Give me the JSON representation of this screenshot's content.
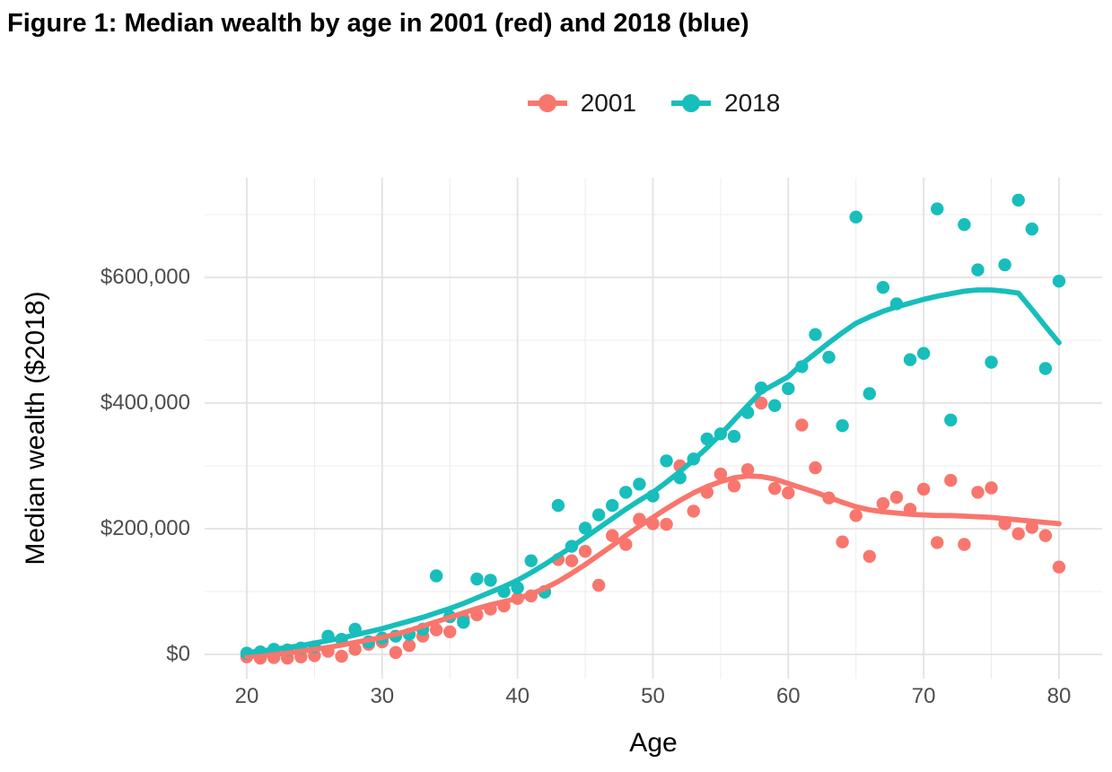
{
  "title": "Figure 1: Median wealth by age in 2001 (red) and 2018 (blue)",
  "legend": {
    "position": "top-center"
  },
  "chart_data": {
    "type": "scatter",
    "title": "Figure 1: Median wealth by age in 2001 (red) and 2018 (blue)",
    "xlabel": "Age",
    "ylabel": "Median wealth ($2018)",
    "x": [
      20,
      21,
      22,
      23,
      24,
      25,
      26,
      27,
      28,
      29,
      30,
      31,
      32,
      33,
      34,
      35,
      36,
      37,
      38,
      39,
      40,
      41,
      42,
      43,
      44,
      45,
      46,
      47,
      48,
      49,
      50,
      51,
      52,
      53,
      54,
      55,
      56,
      57,
      58,
      59,
      60,
      61,
      62,
      63,
      64,
      65,
      66,
      67,
      68,
      69,
      70,
      71,
      72,
      73,
      74,
      75,
      76,
      77,
      78,
      79,
      80
    ],
    "series": [
      {
        "name": "2001",
        "color": "#F8766D",
        "points": [
          -4000,
          -6000,
          -5000,
          -6000,
          -4000,
          -2000,
          5000,
          -3000,
          8000,
          16000,
          20000,
          3000,
          14000,
          29000,
          39000,
          36000,
          57000,
          63000,
          72000,
          77000,
          89000,
          93000,
          100000,
          151000,
          149000,
          164000,
          110000,
          189000,
          175000,
          215000,
          208000,
          207000,
          300000,
          228000,
          258000,
          287000,
          268000,
          294000,
          400000,
          264000,
          257000,
          365000,
          297000,
          249000,
          179000,
          221000,
          156000,
          240000,
          250000,
          231000,
          263000,
          178000,
          277000,
          175000,
          258000,
          265000,
          208000,
          192000,
          202000,
          189000,
          139000
        ],
        "trend": [
          -3000,
          -2000,
          0,
          2000,
          5000,
          8000,
          11000,
          15000,
          19000,
          23000,
          27000,
          32000,
          38000,
          45000,
          52000,
          59000,
          66000,
          73000,
          79000,
          84000,
          89000,
          96000,
          105000,
          116000,
          129000,
          143000,
          158000,
          173000,
          189000,
          204000,
          218000,
          232000,
          245000,
          257000,
          267000,
          275000,
          281000,
          284000,
          283000,
          279000,
          272000,
          265000,
          258000,
          250000,
          242000,
          235000,
          230000,
          227000,
          225000,
          223000,
          222000,
          221000,
          221000,
          220000,
          219000,
          218000,
          216000,
          214000,
          212000,
          210000,
          208000
        ]
      },
      {
        "name": "2018",
        "color": "#17BEBB",
        "points": [
          2000,
          4000,
          8000,
          7000,
          10000,
          12000,
          29000,
          24000,
          40000,
          20000,
          26000,
          29000,
          32000,
          40000,
          125000,
          60000,
          51000,
          120000,
          118000,
          100000,
          106000,
          149000,
          99000,
          237000,
          172000,
          201000,
          222000,
          237000,
          258000,
          271000,
          252000,
          308000,
          281000,
          311000,
          343000,
          351000,
          347000,
          385000,
          424000,
          396000,
          423000,
          458000,
          509000,
          473000,
          364000,
          696000,
          415000,
          584000,
          558000,
          469000,
          479000,
          709000,
          373000,
          684000,
          612000,
          465000,
          620000,
          723000,
          677000,
          455000,
          594000
        ],
        "trend": [
          3000,
          5000,
          8000,
          11000,
          14000,
          18000,
          22000,
          26000,
          31000,
          36000,
          41000,
          47000,
          53000,
          59000,
          66000,
          73000,
          81000,
          90000,
          99000,
          108000,
          118000,
          130000,
          143000,
          157000,
          171000,
          186000,
          201000,
          216000,
          231000,
          245000,
          258000,
          274000,
          291000,
          309000,
          329000,
          350000,
          373000,
          396000,
          418000,
          430000,
          442000,
          462000,
          479000,
          496000,
          512000,
          527000,
          537000,
          546000,
          553000,
          559000,
          565000,
          570000,
          574000,
          578000,
          580000,
          580000,
          578000,
          575000,
          549000,
          522000,
          496000
        ]
      }
    ],
    "x_ticks": {
      "values": [
        20,
        30,
        40,
        50,
        60,
        70,
        80
      ],
      "labels": [
        "20",
        "30",
        "40",
        "50",
        "60",
        "70",
        "80"
      ]
    },
    "y_ticks": {
      "values": [
        0,
        200000,
        400000,
        600000
      ],
      "labels": [
        "$0",
        "$200,000",
        "$400,000",
        "$600,000"
      ]
    },
    "x_minor": [
      25,
      35,
      45,
      55,
      65,
      75
    ],
    "y_minor": [
      100000,
      300000,
      500000,
      700000
    ],
    "x_range": [
      16.885,
      83.185
    ],
    "y_range": [
      -38600,
      758600
    ],
    "grid": true,
    "legend_position": "top"
  },
  "style": {
    "grid_major_color": "#E2E2E2",
    "grid_minor_color": "#ECECEC",
    "tick_label_color": "#4d4d4d",
    "background": "#ffffff"
  }
}
